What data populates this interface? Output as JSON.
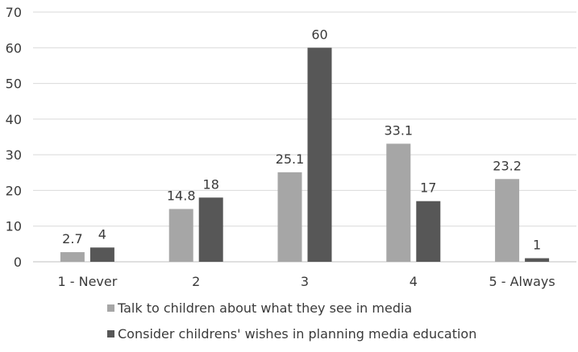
{
  "chart_data": {
    "type": "bar",
    "categories": [
      "1 - Never",
      "2",
      "3",
      "4",
      "5 - Always"
    ],
    "series": [
      {
        "name": "Talk to children about what they see in media",
        "values": [
          2.7,
          14.8,
          25.1,
          33.1,
          23.2
        ],
        "labels": [
          "2.7",
          "14.8",
          "25.1",
          "33.1",
          "23.2"
        ],
        "color": "#a6a6a6"
      },
      {
        "name": "Consider childrens' wishes in planning media education",
        "values": [
          4,
          18,
          60,
          17,
          1
        ],
        "labels": [
          "4",
          "18",
          "60",
          "17",
          "1"
        ],
        "color": "#575757"
      }
    ],
    "ylim": [
      0,
      70
    ],
    "yticks": [
      "0",
      "10",
      "20",
      "30",
      "40",
      "50",
      "60",
      "70"
    ],
    "grid": true,
    "legend": "bottom"
  }
}
